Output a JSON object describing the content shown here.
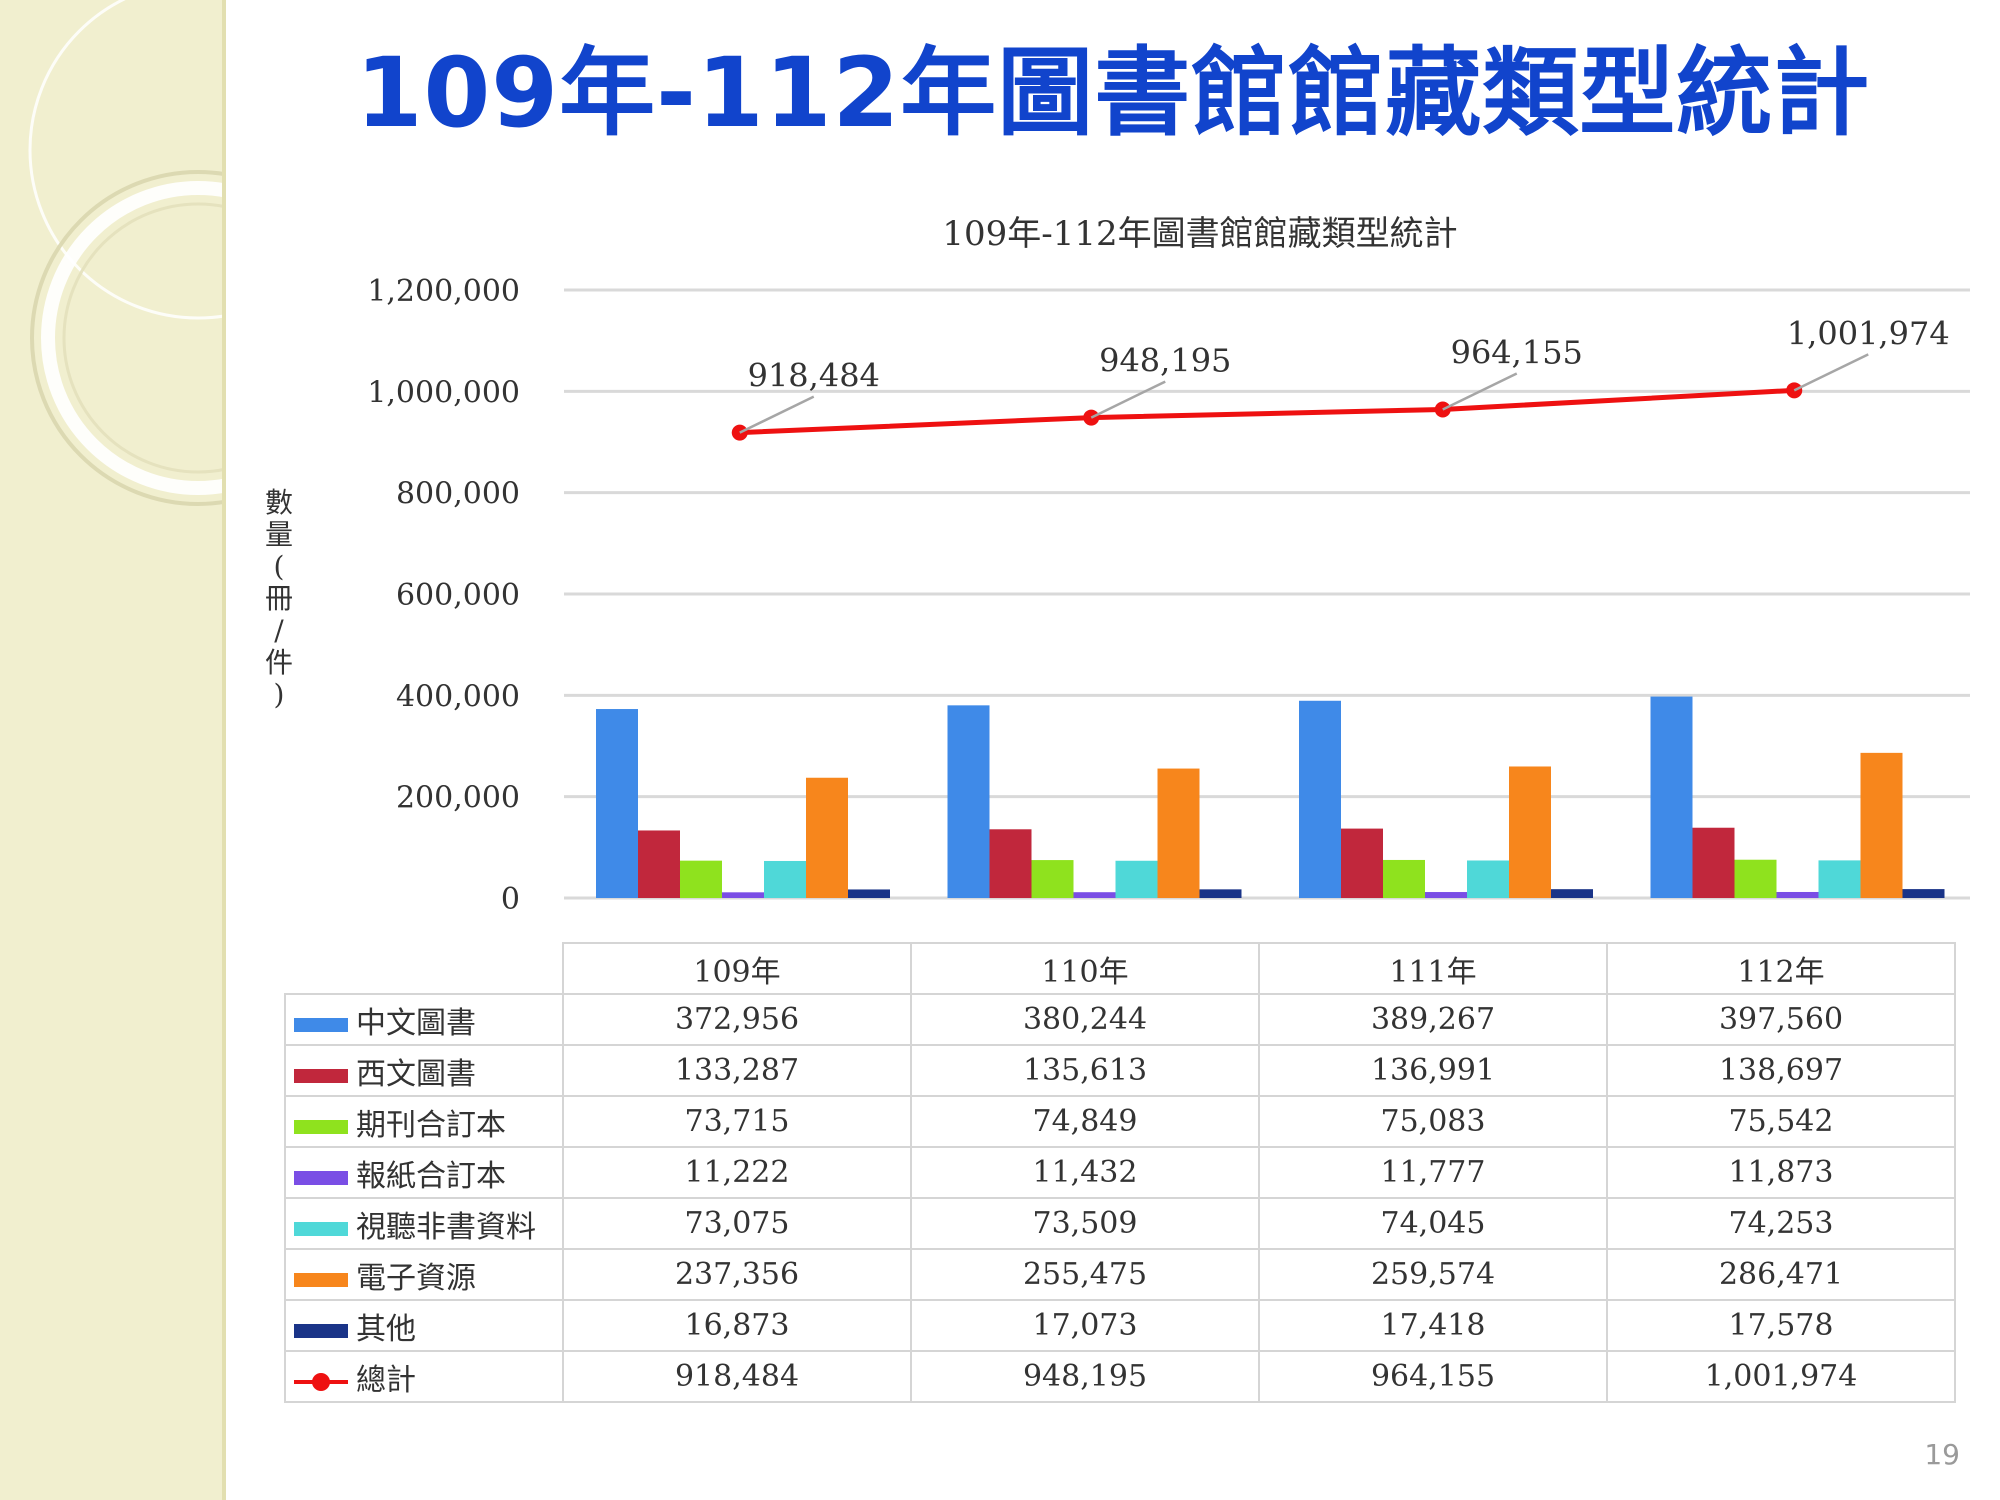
{
  "slide": {
    "title": "109年-112年圖書館館藏類型統計",
    "page_number": "19"
  },
  "chart_data": {
    "type": "bar",
    "title": "109年-112年圖書館館藏類型統計",
    "ylabel": "數量(冊/件)",
    "xlabel": "",
    "ylim": [
      0,
      1200000
    ],
    "yticks": [
      0,
      200000,
      400000,
      600000,
      800000,
      1000000,
      1200000
    ],
    "ytick_labels": [
      "0",
      "200,000",
      "400,000",
      "600,000",
      "800,000",
      "1,000,000",
      "1,200,000"
    ],
    "categories": [
      "109年",
      "110年",
      "111年",
      "112年"
    ],
    "series": [
      {
        "name": "中文圖書",
        "type": "bar",
        "color": "#3f8ae8",
        "values": [
          372956,
          380244,
          389267,
          397560
        ],
        "labels": [
          "372,956",
          "380,244",
          "389,267",
          "397,560"
        ]
      },
      {
        "name": "西文圖書",
        "type": "bar",
        "color": "#c1273c",
        "values": [
          133287,
          135613,
          136991,
          138697
        ],
        "labels": [
          "133,287",
          "135,613",
          "136,991",
          "138,697"
        ]
      },
      {
        "name": "期刊合訂本",
        "type": "bar",
        "color": "#8fe21e",
        "values": [
          73715,
          74849,
          75083,
          75542
        ],
        "labels": [
          "73,715",
          "74,849",
          "75,083",
          "75,542"
        ]
      },
      {
        "name": "報紙合訂本",
        "type": "bar",
        "color": "#7a4ee5",
        "values": [
          11222,
          11432,
          11777,
          11873
        ],
        "labels": [
          "11,222",
          "11,432",
          "11,777",
          "11,873"
        ]
      },
      {
        "name": "視聽非書資料",
        "type": "bar",
        "color": "#4fd8d8",
        "values": [
          73075,
          73509,
          74045,
          74253
        ],
        "labels": [
          "73,075",
          "73,509",
          "74,045",
          "74,253"
        ]
      },
      {
        "name": "電子資源",
        "type": "bar",
        "color": "#f7861c",
        "values": [
          237356,
          255475,
          259574,
          286471
        ],
        "labels": [
          "237,356",
          "255,475",
          "259,574",
          "286,471"
        ]
      },
      {
        "name": "其他",
        "type": "bar",
        "color": "#1a3488",
        "values": [
          16873,
          17073,
          17418,
          17578
        ],
        "labels": [
          "16,873",
          "17,073",
          "17,418",
          "17,578"
        ]
      },
      {
        "name": "總計",
        "type": "line",
        "color": "#ee1111",
        "values": [
          918484,
          948195,
          964155,
          1001974
        ],
        "labels": [
          "918,484",
          "948,195",
          "964,155",
          "1,001,974"
        ]
      }
    ],
    "grid": true,
    "legend": "data table below chart"
  }
}
